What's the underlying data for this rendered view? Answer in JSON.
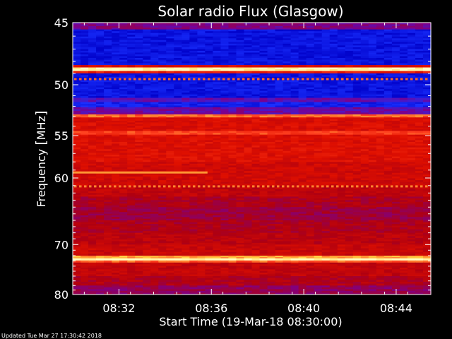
{
  "chart_data": {
    "type": "heatmap",
    "title": "Solar radio Flux (Glasgow)",
    "xlabel": "Start Time (19-Mar-18 08:30:00)",
    "ylabel_prefix": "Frequency ",
    "ylabel_unit": "MHz",
    "x_range": [
      "08:30:00",
      "08:45:30"
    ],
    "x_ticks": [
      "08:32",
      "08:36",
      "08:40",
      "08:44"
    ],
    "y_range_mhz": [
      45,
      80
    ],
    "y_ticks": [
      45,
      50,
      55,
      60,
      70,
      80
    ],
    "y_scale": "reciprocal",
    "colormap": [
      "#0000c8",
      "#1a30ff",
      "#7a0090",
      "#b00010",
      "#e01000",
      "#ff4020",
      "#ffd040",
      "#ffffc0"
    ],
    "bands": [
      {
        "f0": 45.0,
        "f1": 45.5,
        "level": 0.3
      },
      {
        "f0": 45.5,
        "f1": 48.3,
        "level": 0.06
      },
      {
        "f0": 48.3,
        "f1": 48.5,
        "level": 0.55
      },
      {
        "f0": 48.5,
        "f1": 48.8,
        "level": 0.97
      },
      {
        "f0": 48.8,
        "f1": 49.0,
        "level": 0.6
      },
      {
        "f0": 49.0,
        "f1": 51.2,
        "level": 0.06
      },
      {
        "f0": 51.2,
        "f1": 51.6,
        "level": 0.24
      },
      {
        "f0": 51.6,
        "f1": 52.1,
        "level": 0.1
      },
      {
        "f0": 52.1,
        "f1": 52.8,
        "level": 0.26
      },
      {
        "f0": 52.8,
        "f1": 53.1,
        "level": 0.75
      },
      {
        "f0": 53.1,
        "f1": 54.5,
        "level": 0.55
      },
      {
        "f0": 54.5,
        "f1": 54.9,
        "level": 0.7
      },
      {
        "f0": 54.9,
        "f1": 58.0,
        "level": 0.56
      },
      {
        "f0": 58.0,
        "f1": 61.0,
        "level": 0.52
      },
      {
        "f0": 61.0,
        "f1": 62.5,
        "level": 0.47
      },
      {
        "f0": 62.5,
        "f1": 64.0,
        "level": 0.42
      },
      {
        "f0": 64.0,
        "f1": 66.0,
        "level": 0.38
      },
      {
        "f0": 66.0,
        "f1": 68.0,
        "level": 0.42
      },
      {
        "f0": 68.0,
        "f1": 70.0,
        "level": 0.46
      },
      {
        "f0": 70.0,
        "f1": 72.0,
        "level": 0.5
      },
      {
        "f0": 72.0,
        "f1": 72.5,
        "level": 0.82
      },
      {
        "f0": 72.5,
        "f1": 72.9,
        "level": 0.99
      },
      {
        "f0": 72.9,
        "f1": 73.3,
        "level": 0.74
      },
      {
        "f0": 73.3,
        "f1": 76.0,
        "level": 0.48
      },
      {
        "f0": 76.0,
        "f1": 78.0,
        "level": 0.43
      },
      {
        "f0": 78.0,
        "f1": 80.0,
        "level": 0.35
      }
    ],
    "features": [
      {
        "type": "line",
        "t0": "08:30:00",
        "t1": "08:35:50",
        "f": 59.3,
        "level": 0.8
      },
      {
        "type": "dashed",
        "t0": "08:30:00",
        "t1": "08:45:30",
        "f": 61.1,
        "level": 0.78
      },
      {
        "type": "dashed",
        "t0": "08:30:00",
        "t1": "08:45:30",
        "f": 49.5,
        "level": 0.75
      }
    ]
  },
  "footer": {
    "updated": "Updated Tue Mar 27 17:30:42 2018"
  }
}
